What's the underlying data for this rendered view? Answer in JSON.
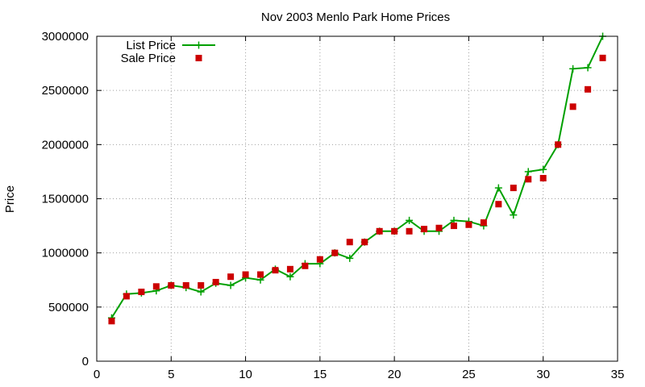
{
  "chart_data": {
    "type": "line",
    "title": "Nov 2003 Menlo Park Home Prices",
    "xlabel": "",
    "ylabel": "Price",
    "xlim": [
      0,
      35
    ],
    "ylim": [
      0,
      3000000
    ],
    "xticks": [
      "0",
      "5",
      "10",
      "15",
      "20",
      "25",
      "30",
      "35"
    ],
    "yticks": [
      "0",
      "500000",
      "1000000",
      "1500000",
      "2000000",
      "2500000",
      "3000000"
    ],
    "grid": true,
    "legend_position": "top-left",
    "x": [
      1,
      2,
      3,
      4,
      5,
      6,
      7,
      8,
      9,
      10,
      11,
      12,
      13,
      14,
      15,
      16,
      17,
      18,
      19,
      20,
      21,
      22,
      23,
      24,
      25,
      26,
      27,
      28,
      29,
      30,
      31,
      32,
      33,
      34
    ],
    "series": [
      {
        "name": "List Price",
        "style": "line-with-plus-markers",
        "color": "#00a000",
        "values": [
          400000,
          620000,
          630000,
          650000,
          700000,
          680000,
          640000,
          720000,
          700000,
          770000,
          750000,
          850000,
          780000,
          900000,
          900000,
          1000000,
          950000,
          1100000,
          1200000,
          1200000,
          1300000,
          1200000,
          1200000,
          1300000,
          1290000,
          1250000,
          1600000,
          1350000,
          1750000,
          1770000,
          2000000,
          2700000,
          2710000,
          3000000
        ]
      },
      {
        "name": "Sale Price",
        "style": "square-markers",
        "color": "#cc0000",
        "values": [
          370000,
          600000,
          640000,
          690000,
          700000,
          700000,
          700000,
          730000,
          780000,
          800000,
          800000,
          840000,
          850000,
          880000,
          940000,
          1000000,
          1100000,
          1100000,
          1200000,
          1200000,
          1200000,
          1220000,
          1230000,
          1250000,
          1260000,
          1280000,
          1450000,
          1600000,
          1680000,
          1690000,
          2000000,
          2350000,
          2510000,
          2800000
        ]
      }
    ]
  }
}
